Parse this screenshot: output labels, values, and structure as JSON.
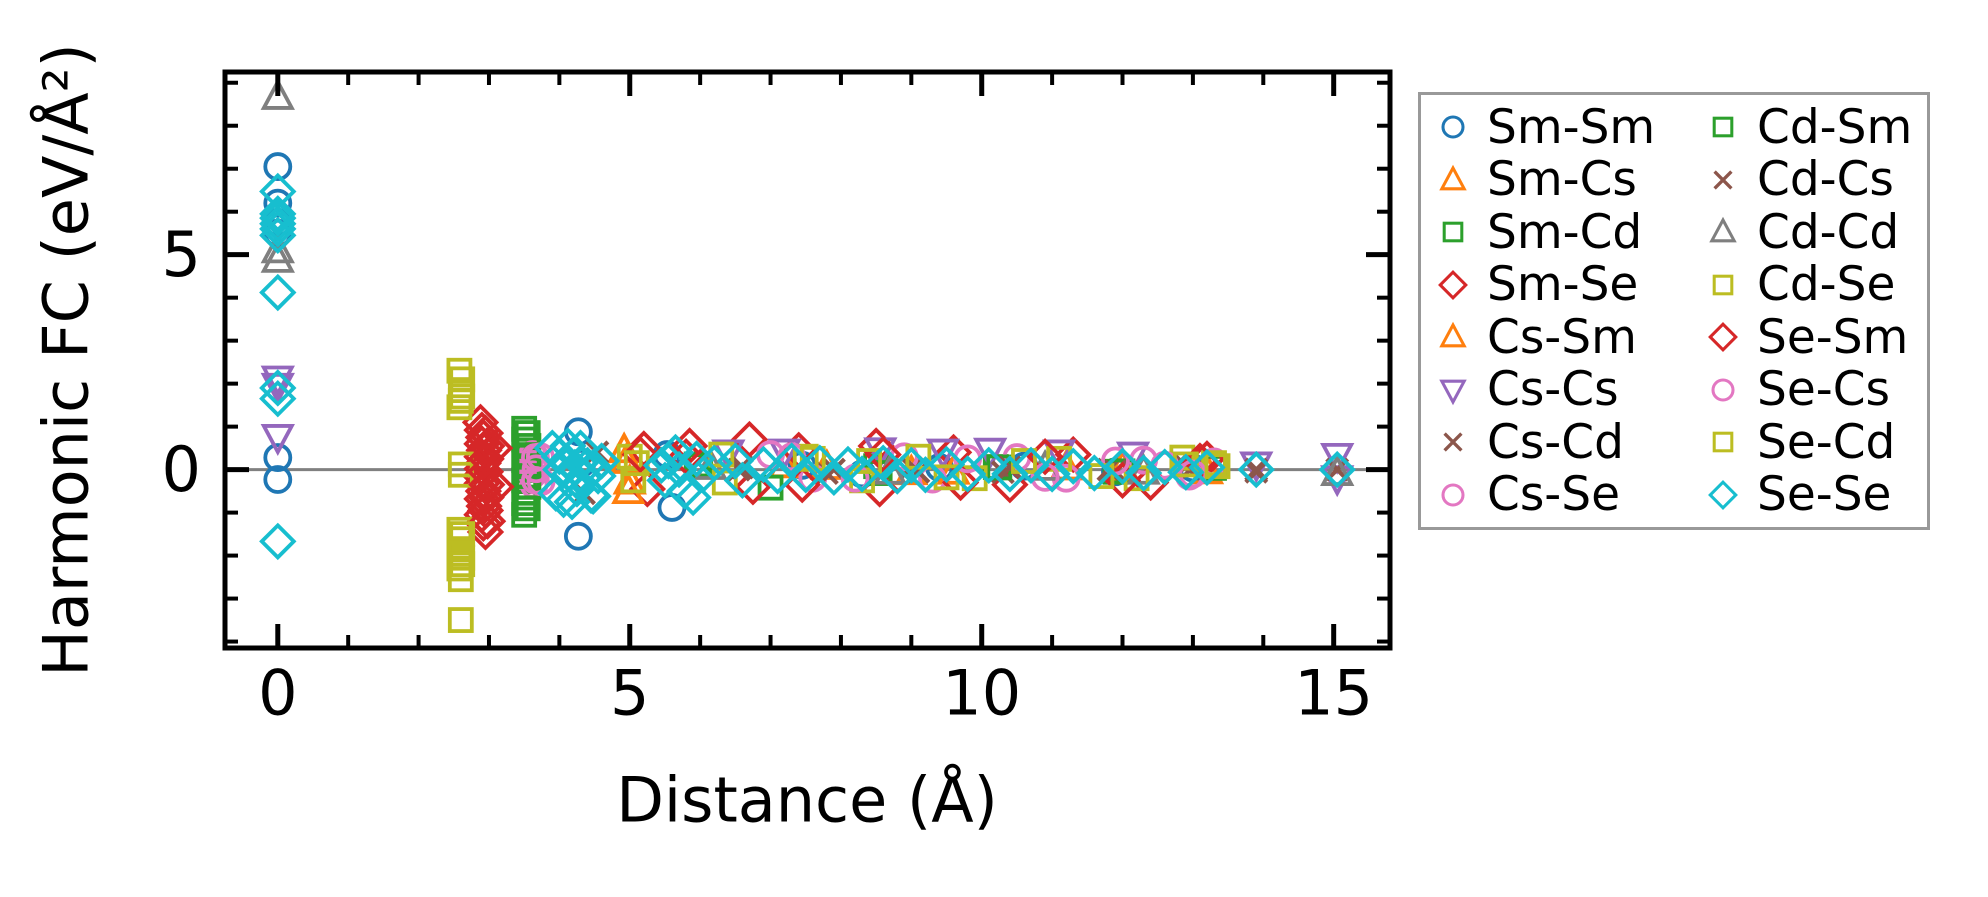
{
  "figure": {
    "background": "#ffffff",
    "axis_color": "#000000",
    "zero_line_color": "#808080",
    "legend_border_color": "#999999"
  },
  "chart_data": {
    "type": "scatter",
    "title": "",
    "xlabel": "Distance (Å)",
    "ylabel": "Harmonic FC (eV/Å²)",
    "xlim": [
      -0.75,
      15.8
    ],
    "ylim": [
      -4.15,
      9.25
    ],
    "grid": false,
    "zero_line": true,
    "legend_position": "outside-right",
    "legend_columns": 2,
    "x_ticks": {
      "major": [
        0,
        5,
        10,
        15
      ],
      "labels": [
        "0",
        "5",
        "10",
        "15"
      ],
      "minor": [
        1,
        2,
        3,
        4,
        6,
        7,
        8,
        9,
        11,
        12,
        13,
        14
      ]
    },
    "y_ticks": {
      "major": [
        0,
        5
      ],
      "labels": [
        "0",
        "5"
      ],
      "minor": [
        -4,
        -3,
        -2,
        -1,
        1,
        2,
        3,
        4,
        6,
        7,
        8,
        9
      ]
    },
    "series": [
      {
        "name": "Sm-Sm",
        "marker": "circle",
        "color": "#1f77b4",
        "points": [
          [
            0,
            7.05
          ],
          [
            0,
            6.2
          ],
          [
            0,
            5.75
          ],
          [
            0,
            5.5
          ],
          [
            0,
            0.28
          ],
          [
            0,
            -0.23
          ],
          [
            4.27,
            0.88
          ],
          [
            4.27,
            -1.55
          ],
          [
            4.32,
            0.15
          ],
          [
            5.53,
            0.35
          ],
          [
            5.6,
            -0.88
          ],
          [
            7.45,
            0.1
          ],
          [
            8.3,
            -0.1
          ],
          [
            9.4,
            0.05
          ],
          [
            10.6,
            0.08
          ],
          [
            11.9,
            -0.05
          ],
          [
            13.0,
            0.04
          ]
        ]
      },
      {
        "name": "Sm-Cs",
        "marker": "triangle-up",
        "color": "#ff7f0e",
        "points": [
          [
            4.92,
            0.45
          ],
          [
            5.0,
            -0.28
          ],
          [
            7.2,
            0.1
          ],
          [
            9.0,
            -0.06
          ],
          [
            11.2,
            0.05
          ],
          [
            13.2,
            -0.04
          ]
        ]
      },
      {
        "name": "Sm-Cd",
        "marker": "square",
        "color": "#2ca02c",
        "points": [
          [
            3.5,
            0.95
          ],
          [
            3.5,
            0.7
          ],
          [
            3.52,
            0.45
          ],
          [
            3.5,
            0.22
          ],
          [
            3.51,
            0.0
          ],
          [
            3.5,
            -0.25
          ],
          [
            3.52,
            -0.52
          ],
          [
            3.5,
            -0.78
          ],
          [
            3.5,
            -1.05
          ],
          [
            5.95,
            0.12
          ],
          [
            7.0,
            -0.42
          ],
          [
            8.5,
            0.08
          ],
          [
            10.2,
            0.06
          ],
          [
            11.9,
            -0.05
          ],
          [
            13.3,
            0.04
          ]
        ]
      },
      {
        "name": "Sm-Se",
        "marker": "diamond",
        "color": "#d62728",
        "points": [
          [
            2.88,
            1.1
          ],
          [
            2.9,
            0.92
          ],
          [
            2.92,
            0.75
          ],
          [
            2.9,
            0.6
          ],
          [
            2.93,
            0.45
          ],
          [
            2.9,
            0.3
          ],
          [
            2.92,
            0.15
          ],
          [
            2.9,
            0.02
          ],
          [
            2.88,
            -0.15
          ],
          [
            2.9,
            -0.32
          ],
          [
            2.92,
            -0.5
          ],
          [
            2.9,
            -0.68
          ],
          [
            2.93,
            -0.85
          ],
          [
            2.9,
            -1.05
          ],
          [
            2.92,
            -1.25
          ],
          [
            2.95,
            -1.45
          ],
          [
            3.08,
            0.5
          ],
          [
            3.1,
            -0.4
          ],
          [
            5.2,
            0.48
          ],
          [
            5.25,
            -0.45
          ],
          [
            5.8,
            0.3
          ],
          [
            6.7,
            0.7
          ],
          [
            6.75,
            -0.4
          ],
          [
            7.4,
            0.45
          ],
          [
            8.5,
            0.55
          ],
          [
            8.55,
            -0.45
          ],
          [
            9.6,
            0.4
          ],
          [
            10.4,
            -0.35
          ],
          [
            11.3,
            0.35
          ],
          [
            12.4,
            -0.3
          ],
          [
            13.2,
            0.25
          ]
        ]
      },
      {
        "name": "Cs-Sm",
        "marker": "triangle-up",
        "color": "#ff7f0e",
        "points": [
          [
            4.95,
            0.2
          ],
          [
            4.98,
            -0.5
          ],
          [
            7.8,
            0.06
          ],
          [
            9.6,
            -0.05
          ],
          [
            12.0,
            0.04
          ]
        ]
      },
      {
        "name": "Cs-Cs",
        "marker": "triangle-down",
        "color": "#9467bd",
        "points": [
          [
            0,
            2.12
          ],
          [
            0,
            1.95
          ],
          [
            0,
            0.76
          ],
          [
            6.4,
            0.4
          ],
          [
            7.2,
            0.42
          ],
          [
            8.56,
            0.45
          ],
          [
            9.45,
            0.42
          ],
          [
            10.12,
            0.44
          ],
          [
            11.1,
            0.4
          ],
          [
            12.15,
            0.35
          ],
          [
            13.9,
            0.12
          ],
          [
            15.05,
            0.32
          ],
          [
            15.05,
            -0.2
          ]
        ]
      },
      {
        "name": "Cs-Cd",
        "marker": "x",
        "color": "#8c564b",
        "points": [
          [
            4.54,
            0.4
          ],
          [
            6.55,
            0.0
          ],
          [
            7.8,
            -0.08
          ],
          [
            9.0,
            0.05
          ],
          [
            10.3,
            -0.06
          ],
          [
            11.8,
            0.0
          ],
          [
            12.9,
            0.08
          ],
          [
            13.9,
            -0.05
          ],
          [
            15.05,
            0.0
          ]
        ]
      },
      {
        "name": "Cs-Se",
        "marker": "circle",
        "color": "#e377c2",
        "points": [
          [
            3.62,
            0.35
          ],
          [
            3.63,
            0.12
          ],
          [
            3.62,
            -0.12
          ],
          [
            3.64,
            -0.35
          ],
          [
            7.0,
            0.35
          ],
          [
            7.6,
            -0.2
          ],
          [
            8.9,
            0.3
          ],
          [
            9.3,
            -0.22
          ],
          [
            10.5,
            0.28
          ],
          [
            11.2,
            -0.2
          ],
          [
            12.3,
            0.22
          ],
          [
            12.95,
            -0.15
          ],
          [
            13.3,
            0.18
          ]
        ]
      },
      {
        "name": "Cd-Sm",
        "marker": "square",
        "color": "#2ca02c",
        "points": [
          [
            3.55,
            0.85
          ],
          [
            3.56,
            0.55
          ],
          [
            3.55,
            0.3
          ],
          [
            3.56,
            0.08
          ],
          [
            3.55,
            -0.15
          ],
          [
            3.56,
            -0.4
          ],
          [
            3.55,
            -0.65
          ],
          [
            3.55,
            -0.9
          ],
          [
            6.0,
            0.08
          ],
          [
            8.55,
            -0.08
          ],
          [
            10.25,
            0.05
          ],
          [
            12.0,
            -0.04
          ]
        ]
      },
      {
        "name": "Cd-Cs",
        "marker": "x",
        "color": "#8c564b",
        "points": [
          [
            4.35,
            -0.55
          ],
          [
            6.6,
            0.05
          ],
          [
            7.9,
            0.0
          ],
          [
            9.1,
            -0.05
          ],
          [
            10.4,
            0.05
          ],
          [
            11.9,
            -0.04
          ],
          [
            13.0,
            0.06
          ],
          [
            13.9,
            0.0
          ]
        ]
      },
      {
        "name": "Cd-Cd",
        "marker": "triangle-up",
        "color": "#7f7f7f",
        "points": [
          [
            0,
            8.67
          ],
          [
            0,
            5.1
          ],
          [
            0,
            4.88
          ],
          [
            6.15,
            0.06
          ],
          [
            8.7,
            -0.05
          ],
          [
            10.9,
            0.04
          ],
          [
            12.3,
            -0.05
          ],
          [
            15.05,
            -0.08
          ]
        ]
      },
      {
        "name": "Cd-Se",
        "marker": "square",
        "color": "#bcbd22",
        "points": [
          [
            2.58,
            2.3
          ],
          [
            2.6,
            1.85
          ],
          [
            2.62,
            1.7
          ],
          [
            2.58,
            1.45
          ],
          [
            2.6,
            0.12
          ],
          [
            2.6,
            -0.12
          ],
          [
            2.58,
            -1.4
          ],
          [
            2.6,
            -1.62
          ],
          [
            2.58,
            -1.85
          ],
          [
            2.62,
            -2.05
          ],
          [
            2.58,
            -2.3
          ],
          [
            2.6,
            -2.55
          ],
          [
            2.6,
            -3.5
          ],
          [
            5.0,
            0.3
          ],
          [
            5.05,
            -0.25
          ],
          [
            6.3,
            0.35
          ],
          [
            7.5,
            0.3
          ],
          [
            8.3,
            -0.25
          ],
          [
            9.1,
            0.3
          ],
          [
            9.9,
            -0.2
          ],
          [
            11.1,
            0.25
          ],
          [
            12.2,
            -0.2
          ],
          [
            12.85,
            0.28
          ],
          [
            13.3,
            0.15
          ]
        ]
      },
      {
        "name": "Se-Sm",
        "marker": "diamond",
        "color": "#d62728",
        "points": [
          [
            2.95,
            0.85
          ],
          [
            2.97,
            0.55
          ],
          [
            2.96,
            0.25
          ],
          [
            2.95,
            -0.05
          ],
          [
            2.97,
            -0.35
          ],
          [
            2.96,
            -0.65
          ],
          [
            2.95,
            -0.95
          ],
          [
            2.98,
            -1.2
          ],
          [
            5.15,
            0.35
          ],
          [
            5.85,
            0.55
          ],
          [
            7.45,
            -0.35
          ],
          [
            8.6,
            0.35
          ],
          [
            9.7,
            -0.3
          ],
          [
            10.9,
            0.3
          ],
          [
            12.0,
            -0.25
          ],
          [
            13.1,
            0.2
          ]
        ]
      },
      {
        "name": "Se-Cs",
        "marker": "circle",
        "color": "#e377c2",
        "points": [
          [
            3.66,
            0.28
          ],
          [
            3.67,
            0.02
          ],
          [
            3.66,
            -0.25
          ],
          [
            3.73,
            0.3
          ],
          [
            3.74,
            -0.28
          ],
          [
            7.3,
            0.3
          ],
          [
            8.2,
            -0.2
          ],
          [
            9.8,
            0.25
          ],
          [
            10.9,
            -0.18
          ],
          [
            11.9,
            0.2
          ],
          [
            12.6,
            0.1
          ],
          [
            13.0,
            -0.1
          ]
        ]
      },
      {
        "name": "Se-Cd",
        "marker": "square",
        "color": "#bcbd22",
        "points": [
          [
            2.62,
            2.1
          ],
          [
            2.6,
            1.6
          ],
          [
            2.62,
            -1.5
          ],
          [
            2.6,
            -1.95
          ],
          [
            2.62,
            -2.2
          ],
          [
            5.1,
            0.15
          ],
          [
            6.35,
            -0.3
          ],
          [
            7.6,
            0.25
          ],
          [
            8.4,
            0.2
          ],
          [
            9.5,
            -0.18
          ],
          [
            10.6,
            0.2
          ],
          [
            11.7,
            -0.15
          ],
          [
            12.9,
            0.12
          ],
          [
            13.35,
            0.08
          ]
        ]
      },
      {
        "name": "Se-Se",
        "marker": "diamond",
        "color": "#17becf",
        "points": [
          [
            0,
            6.47
          ],
          [
            0,
            5.95
          ],
          [
            0,
            5.85
          ],
          [
            0,
            5.72
          ],
          [
            0,
            5.6
          ],
          [
            0,
            5.45
          ],
          [
            0,
            4.12
          ],
          [
            0,
            1.9
          ],
          [
            0,
            1.65
          ],
          [
            0,
            -1.67
          ],
          [
            3.9,
            0.5
          ],
          [
            3.95,
            -0.55
          ],
          [
            4.0,
            0.3
          ],
          [
            4.02,
            0.0
          ],
          [
            4.06,
            -0.7
          ],
          [
            4.1,
            0.2
          ],
          [
            4.12,
            0.55
          ],
          [
            4.15,
            -0.1
          ],
          [
            4.18,
            -0.75
          ],
          [
            4.2,
            0.35
          ],
          [
            4.22,
            0.05
          ],
          [
            4.25,
            -0.45
          ],
          [
            4.3,
            0.5
          ],
          [
            4.3,
            0.15
          ],
          [
            4.35,
            -0.2
          ],
          [
            4.4,
            0.1
          ],
          [
            4.45,
            -0.6
          ],
          [
            4.48,
            -0.62
          ],
          [
            4.5,
            0.05
          ],
          [
            4.55,
            -0.15
          ],
          [
            4.6,
            0.2
          ],
          [
            5.45,
            0.1
          ],
          [
            5.5,
            -0.25
          ],
          [
            5.55,
            0.2
          ],
          [
            5.65,
            0.4
          ],
          [
            5.7,
            0.0
          ],
          [
            5.78,
            -0.5
          ],
          [
            5.9,
            -0.65
          ],
          [
            5.95,
            0.25
          ],
          [
            6.05,
            -0.1
          ],
          [
            6.2,
            0.15
          ],
          [
            6.5,
            0.2
          ],
          [
            6.6,
            -0.25
          ],
          [
            6.9,
            0.12
          ],
          [
            7.1,
            -0.15
          ],
          [
            7.3,
            0.2
          ],
          [
            7.5,
            -0.12
          ],
          [
            7.7,
            0.15
          ],
          [
            7.9,
            -0.18
          ],
          [
            8.1,
            0.12
          ],
          [
            8.3,
            -0.1
          ],
          [
            8.6,
            0.15
          ],
          [
            8.8,
            -0.15
          ],
          [
            9.0,
            0.1
          ],
          [
            9.2,
            -0.12
          ],
          [
            9.5,
            0.12
          ],
          [
            9.8,
            -0.1
          ],
          [
            10.1,
            0.1
          ],
          [
            10.4,
            -0.1
          ],
          [
            10.7,
            0.1
          ],
          [
            11.0,
            -0.1
          ],
          [
            11.3,
            0.08
          ],
          [
            11.6,
            -0.08
          ],
          [
            12.0,
            0.08
          ],
          [
            12.3,
            -0.08
          ],
          [
            12.6,
            0.06
          ],
          [
            12.9,
            -0.06
          ],
          [
            13.2,
            0.05
          ],
          [
            13.9,
            0.0
          ],
          [
            15.05,
            0.0
          ]
        ]
      }
    ]
  }
}
